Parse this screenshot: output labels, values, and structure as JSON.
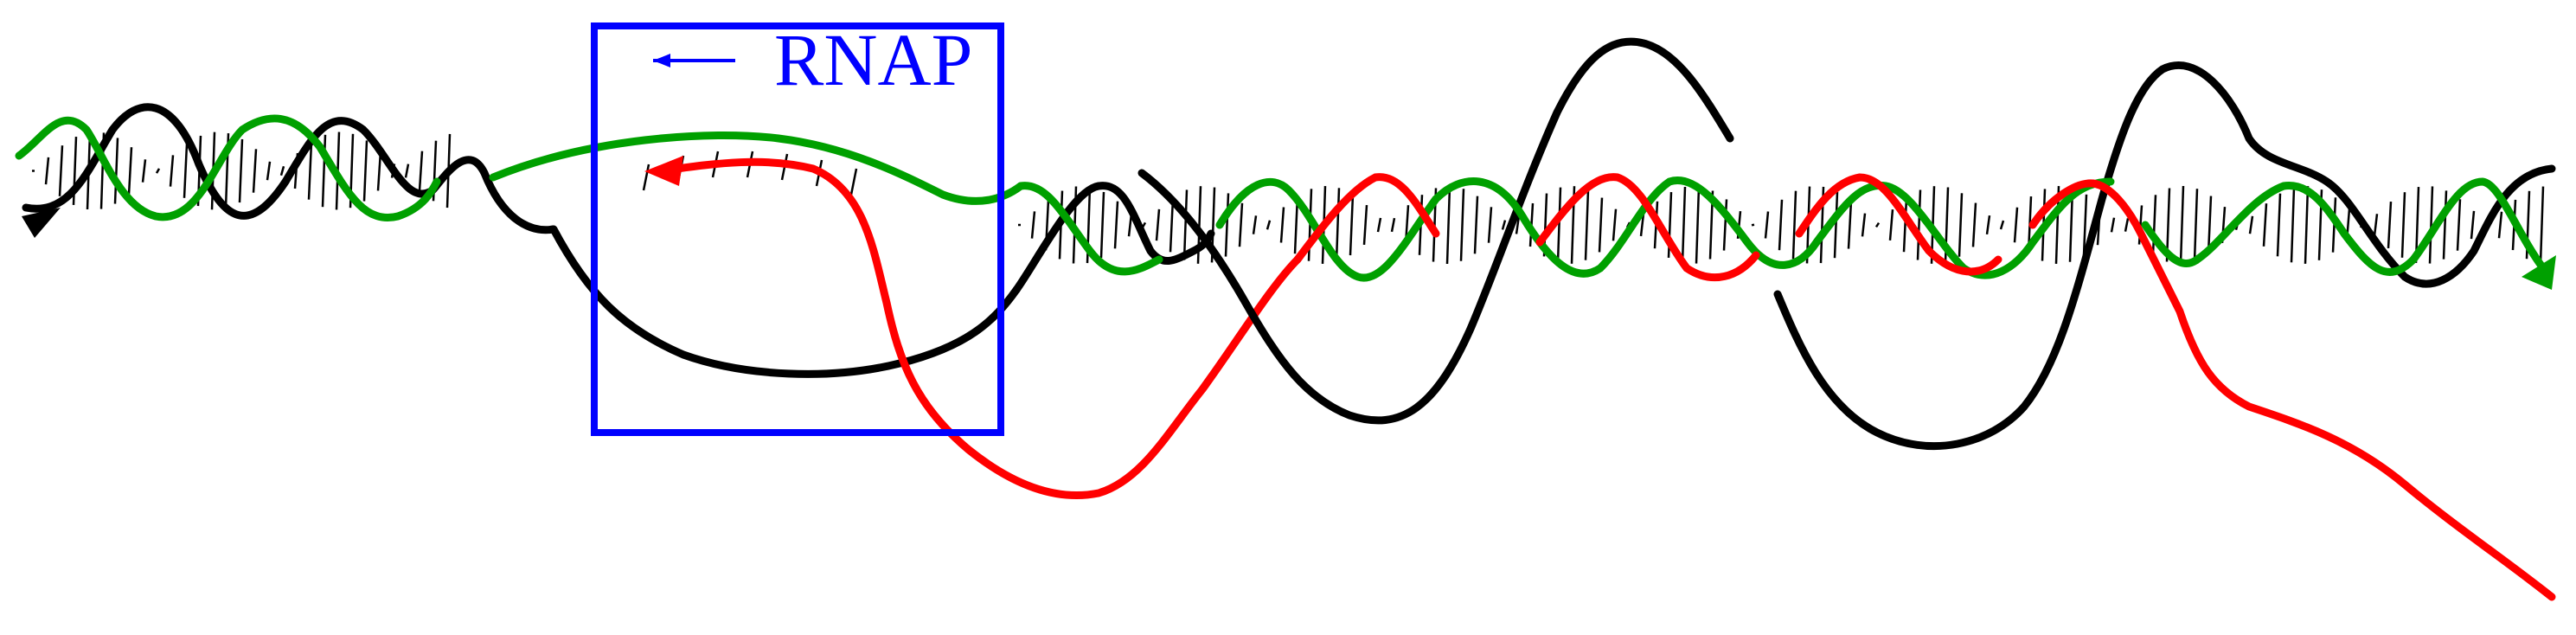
{
  "diagram": {
    "label": "RNAP",
    "colors": {
      "template_strand": "#000000",
      "coding_strand": "#00a000",
      "rna": "#ff0000",
      "polymerase": "#0000ff",
      "base_pair_rungs": "#000000"
    },
    "icons": {
      "direction_arrow": "arrow-left-icon",
      "strand_end": "arrowhead-icon"
    }
  }
}
